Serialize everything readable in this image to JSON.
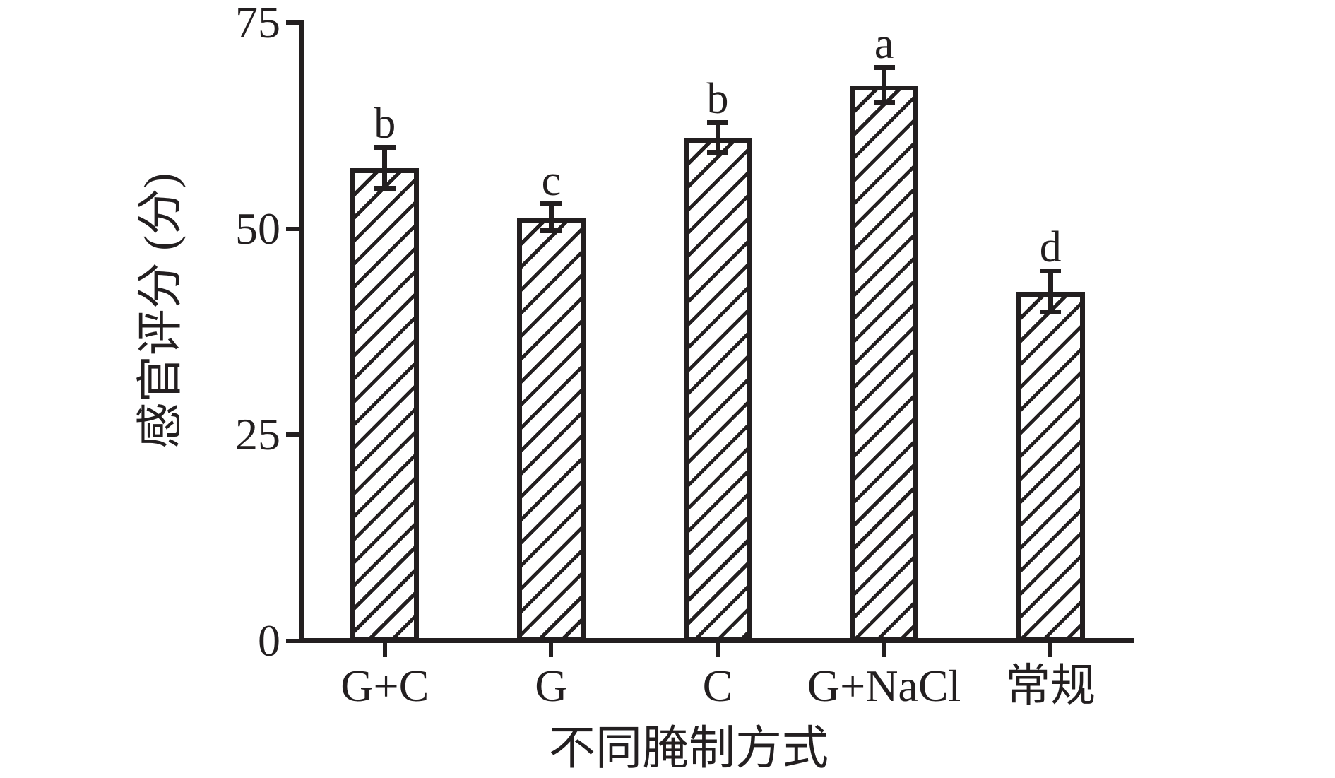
{
  "chart_data": {
    "type": "bar",
    "title": "",
    "categories": [
      "G+C",
      "G",
      "C",
      "G+NaCl",
      "常规"
    ],
    "values": [
      57.4,
      51.4,
      61.1,
      67.5,
      42.4
    ],
    "errors": [
      2.5,
      1.6,
      1.8,
      2.1,
      2.5
    ],
    "sig_letters": [
      "b",
      "c",
      "b",
      "a",
      "d"
    ],
    "xlabel": "不同腌制方式",
    "ylabel": "感官评分 (分)",
    "ylim": [
      0,
      75
    ],
    "yticks": [
      0,
      25,
      50,
      75
    ],
    "legend_position": "none",
    "grid": false,
    "bar_fill": "#ffffff",
    "hatch_pattern": "forward-diagonal",
    "ink_color": "#231f20",
    "background_color": "#ffffff"
  }
}
